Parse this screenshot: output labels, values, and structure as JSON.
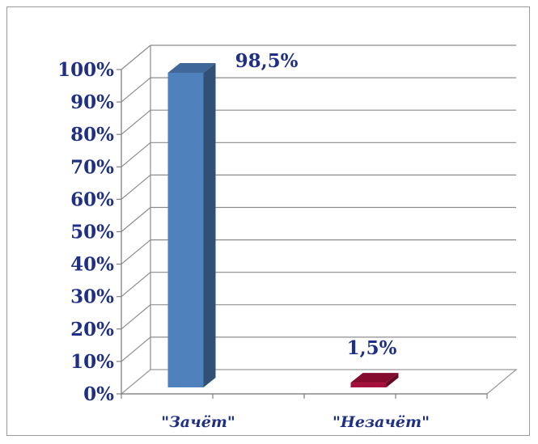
{
  "chart_data": {
    "type": "bar",
    "title": "",
    "xlabel": "",
    "ylabel": "",
    "categories": [
      "\"Зачёт\"",
      "\"Незачёт\""
    ],
    "values": [
      98.5,
      1.5
    ],
    "data_labels": [
      "98,5%",
      "1,5%"
    ],
    "ylim": [
      0,
      100
    ],
    "y_ticks": [
      "0%",
      "10%",
      "20%",
      "30%",
      "40%",
      "50%",
      "60%",
      "70%",
      "80%",
      "90%",
      "100%"
    ],
    "bar_colors": [
      "#4f81bd",
      "#a50e3a"
    ],
    "text_color": "#1f2f86",
    "grid": true,
    "three_d": true
  }
}
